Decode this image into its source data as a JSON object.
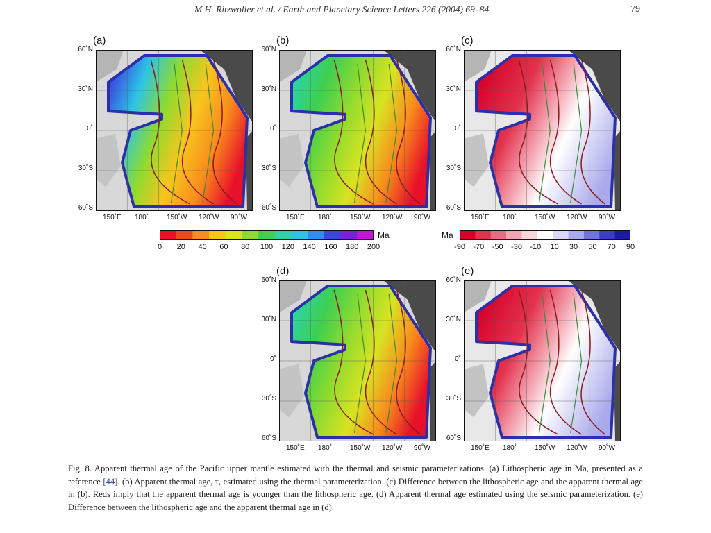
{
  "header": {
    "running_title": "M.H. Ritzwoller et al. / Earth and Planetary Science Letters 226 (2004) 69–84",
    "page_number": "79"
  },
  "panels": [
    {
      "label": "(a)",
      "type": "age"
    },
    {
      "label": "(b)",
      "type": "age"
    },
    {
      "label": "(c)",
      "type": "diff"
    },
    {
      "label": "(d)",
      "type": "age"
    },
    {
      "label": "(e)",
      "type": "diff"
    }
  ],
  "lat_ticks": [
    "60˚N",
    "30˚N",
    "0˚",
    "30˚S",
    "60˚S"
  ],
  "lon_ticks": [
    "150˚E",
    "180˚",
    "150˚W",
    "120˚W",
    "90˚W"
  ],
  "colorbar_age": {
    "unit": "Ma",
    "ticks": [
      "0",
      "20",
      "40",
      "60",
      "80",
      "100",
      "120",
      "140",
      "160",
      "180",
      "200"
    ],
    "colors": [
      "#e8112a",
      "#f04a1a",
      "#f98c1c",
      "#f7c51e",
      "#d8e321",
      "#8fdb2f",
      "#3fcf4f",
      "#2bd4a6",
      "#2dc4e6",
      "#2e8df0",
      "#3a46e0",
      "#7a1ee0",
      "#c713d8"
    ]
  },
  "colorbar_diff": {
    "unit": "Ma",
    "ticks": [
      "-90",
      "-70",
      "-50",
      "-30",
      "-10",
      "10",
      "30",
      "50",
      "70",
      "90"
    ],
    "colors": [
      "#d6002a",
      "#e2334e",
      "#ec6b80",
      "#f4a5b2",
      "#fbd7dd",
      "#ffffff",
      "#d9d9f7",
      "#a9a9ec",
      "#7373de",
      "#3c3cc8",
      "#1a1aa8"
    ]
  },
  "caption": {
    "prefix": "Fig. 8. Apparent thermal age of the Pacific upper mantle estimated with the thermal and seismic parameterizations. (a) Lithospheric age in Ma, presented as a reference ",
    "ref": "[44]",
    "suffix": ". (b) Apparent thermal age, τ, estimated using the thermal parameterization. (c) Difference between the lithospheric age and the apparent thermal age in (b). Reds imply that the apparent thermal age is younger than the lithospheric age. (d) Apparent thermal age estimated using the seismic parameterization. (e) Difference between the lithospheric age and the apparent thermal age in (d)."
  }
}
